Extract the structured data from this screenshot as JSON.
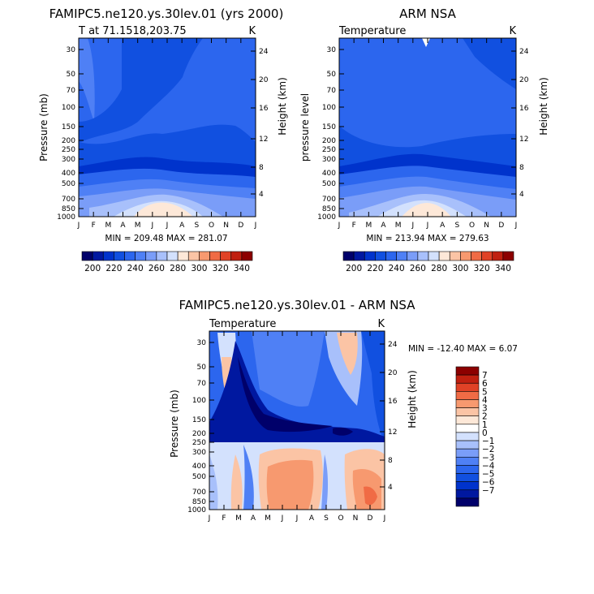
{
  "chart_data": [
    {
      "type": "heatmap",
      "id": "model",
      "title": "FAMIPC5.ne120.ys.30lev.01 (yrs 2000)",
      "left_string": "T at 71.1518,203.75",
      "right_string": "K",
      "xlabel": "",
      "ylabel": "Pressure (mb)",
      "y2label": "Height (km)",
      "x_ticks": [
        "J",
        "F",
        "M",
        "A",
        "M",
        "J",
        "J",
        "A",
        "S",
        "O",
        "N",
        "D",
        "J"
      ],
      "y_ticks": [
        "30",
        "50",
        "70",
        "100",
        "150",
        "200",
        "250",
        "300",
        "400",
        "500",
        "700",
        "850",
        "1000"
      ],
      "y2_ticks": [
        "24",
        "20",
        "16",
        "12",
        "8",
        "4"
      ],
      "stats": "MIN = 209.48   MAX = 281.07",
      "min": 209.48,
      "max": 281.07,
      "colorbar_levels": [
        200,
        210,
        220,
        230,
        240,
        250,
        260,
        270,
        280,
        290,
        300,
        310,
        320,
        330,
        340
      ],
      "colorbar_labels": [
        "200",
        "220",
        "240",
        "260",
        "280",
        "300",
        "320",
        "340"
      ]
    },
    {
      "type": "heatmap",
      "id": "obs",
      "title": "ARM NSA",
      "left_string": "Temperature",
      "right_string": "K",
      "xlabel": "",
      "ylabel": "pressure level",
      "y2label": "Height (km)",
      "x_ticks": [
        "J",
        "F",
        "M",
        "A",
        "M",
        "J",
        "J",
        "A",
        "S",
        "O",
        "N",
        "D",
        "J"
      ],
      "y_ticks": [
        "30",
        "50",
        "70",
        "100",
        "150",
        "200",
        "250",
        "300",
        "400",
        "500",
        "700",
        "850",
        "1000"
      ],
      "y2_ticks": [
        "24",
        "20",
        "16",
        "12",
        "8",
        "4"
      ],
      "stats": "MIN = 213.94   MAX = 279.63",
      "min": 213.94,
      "max": 279.63,
      "colorbar_levels": [
        200,
        210,
        220,
        230,
        240,
        250,
        260,
        270,
        280,
        290,
        300,
        310,
        320,
        330,
        340
      ],
      "colorbar_labels": [
        "200",
        "220",
        "240",
        "260",
        "280",
        "300",
        "320",
        "340"
      ]
    },
    {
      "type": "heatmap",
      "id": "diff",
      "title": "FAMIPC5.ne120.ys.30lev.01 - ARM NSA",
      "left_string": "Temperature",
      "right_string": "K",
      "xlabel": "",
      "ylabel": "Pressure (mb)",
      "y2label": "Height (km)",
      "x_ticks": [
        "J",
        "F",
        "M",
        "A",
        "M",
        "J",
        "J",
        "A",
        "S",
        "O",
        "N",
        "D",
        "J"
      ],
      "y_ticks": [
        "30",
        "50",
        "70",
        "100",
        "150",
        "200",
        "250",
        "300",
        "400",
        "500",
        "700",
        "850",
        "1000"
      ],
      "y2_ticks": [
        "24",
        "20",
        "16",
        "12",
        "8",
        "4"
      ],
      "stats": "MIN = -12.40   MAX =     6.07",
      "min": -12.4,
      "max": 6.07,
      "colorbar_levels": [
        -7,
        -6,
        -5,
        -4,
        -3,
        -2,
        -1,
        0,
        1,
        2,
        3,
        4,
        5,
        6,
        7
      ],
      "colorbar_labels": [
        "7",
        "6",
        "5",
        "4",
        "3",
        "2",
        "1",
        "0",
        "−1",
        "−2",
        "−3",
        "−4",
        "−5",
        "−6",
        "−7"
      ]
    }
  ],
  "colors": {
    "temperature_scale": [
      "#00006a",
      "#0018a0",
      "#0033cc",
      "#1150e0",
      "#2c66ee",
      "#4f80f5",
      "#7a9df8",
      "#a8c0fb",
      "#d3e1fd",
      "#fde8d8",
      "#fbc4a5",
      "#f7996f",
      "#f06b45",
      "#e04226",
      "#c02010",
      "#8c0000"
    ],
    "difference_scale": [
      "#00006a",
      "#0018a0",
      "#0033cc",
      "#1150e0",
      "#2c66ee",
      "#4f80f5",
      "#7a9df8",
      "#a8c0fb",
      "#d3e1fd",
      "#ffffff",
      "#fde8d8",
      "#fbc4a5",
      "#f7996f",
      "#f06b45",
      "#e04226",
      "#c02010",
      "#8c0000"
    ]
  }
}
